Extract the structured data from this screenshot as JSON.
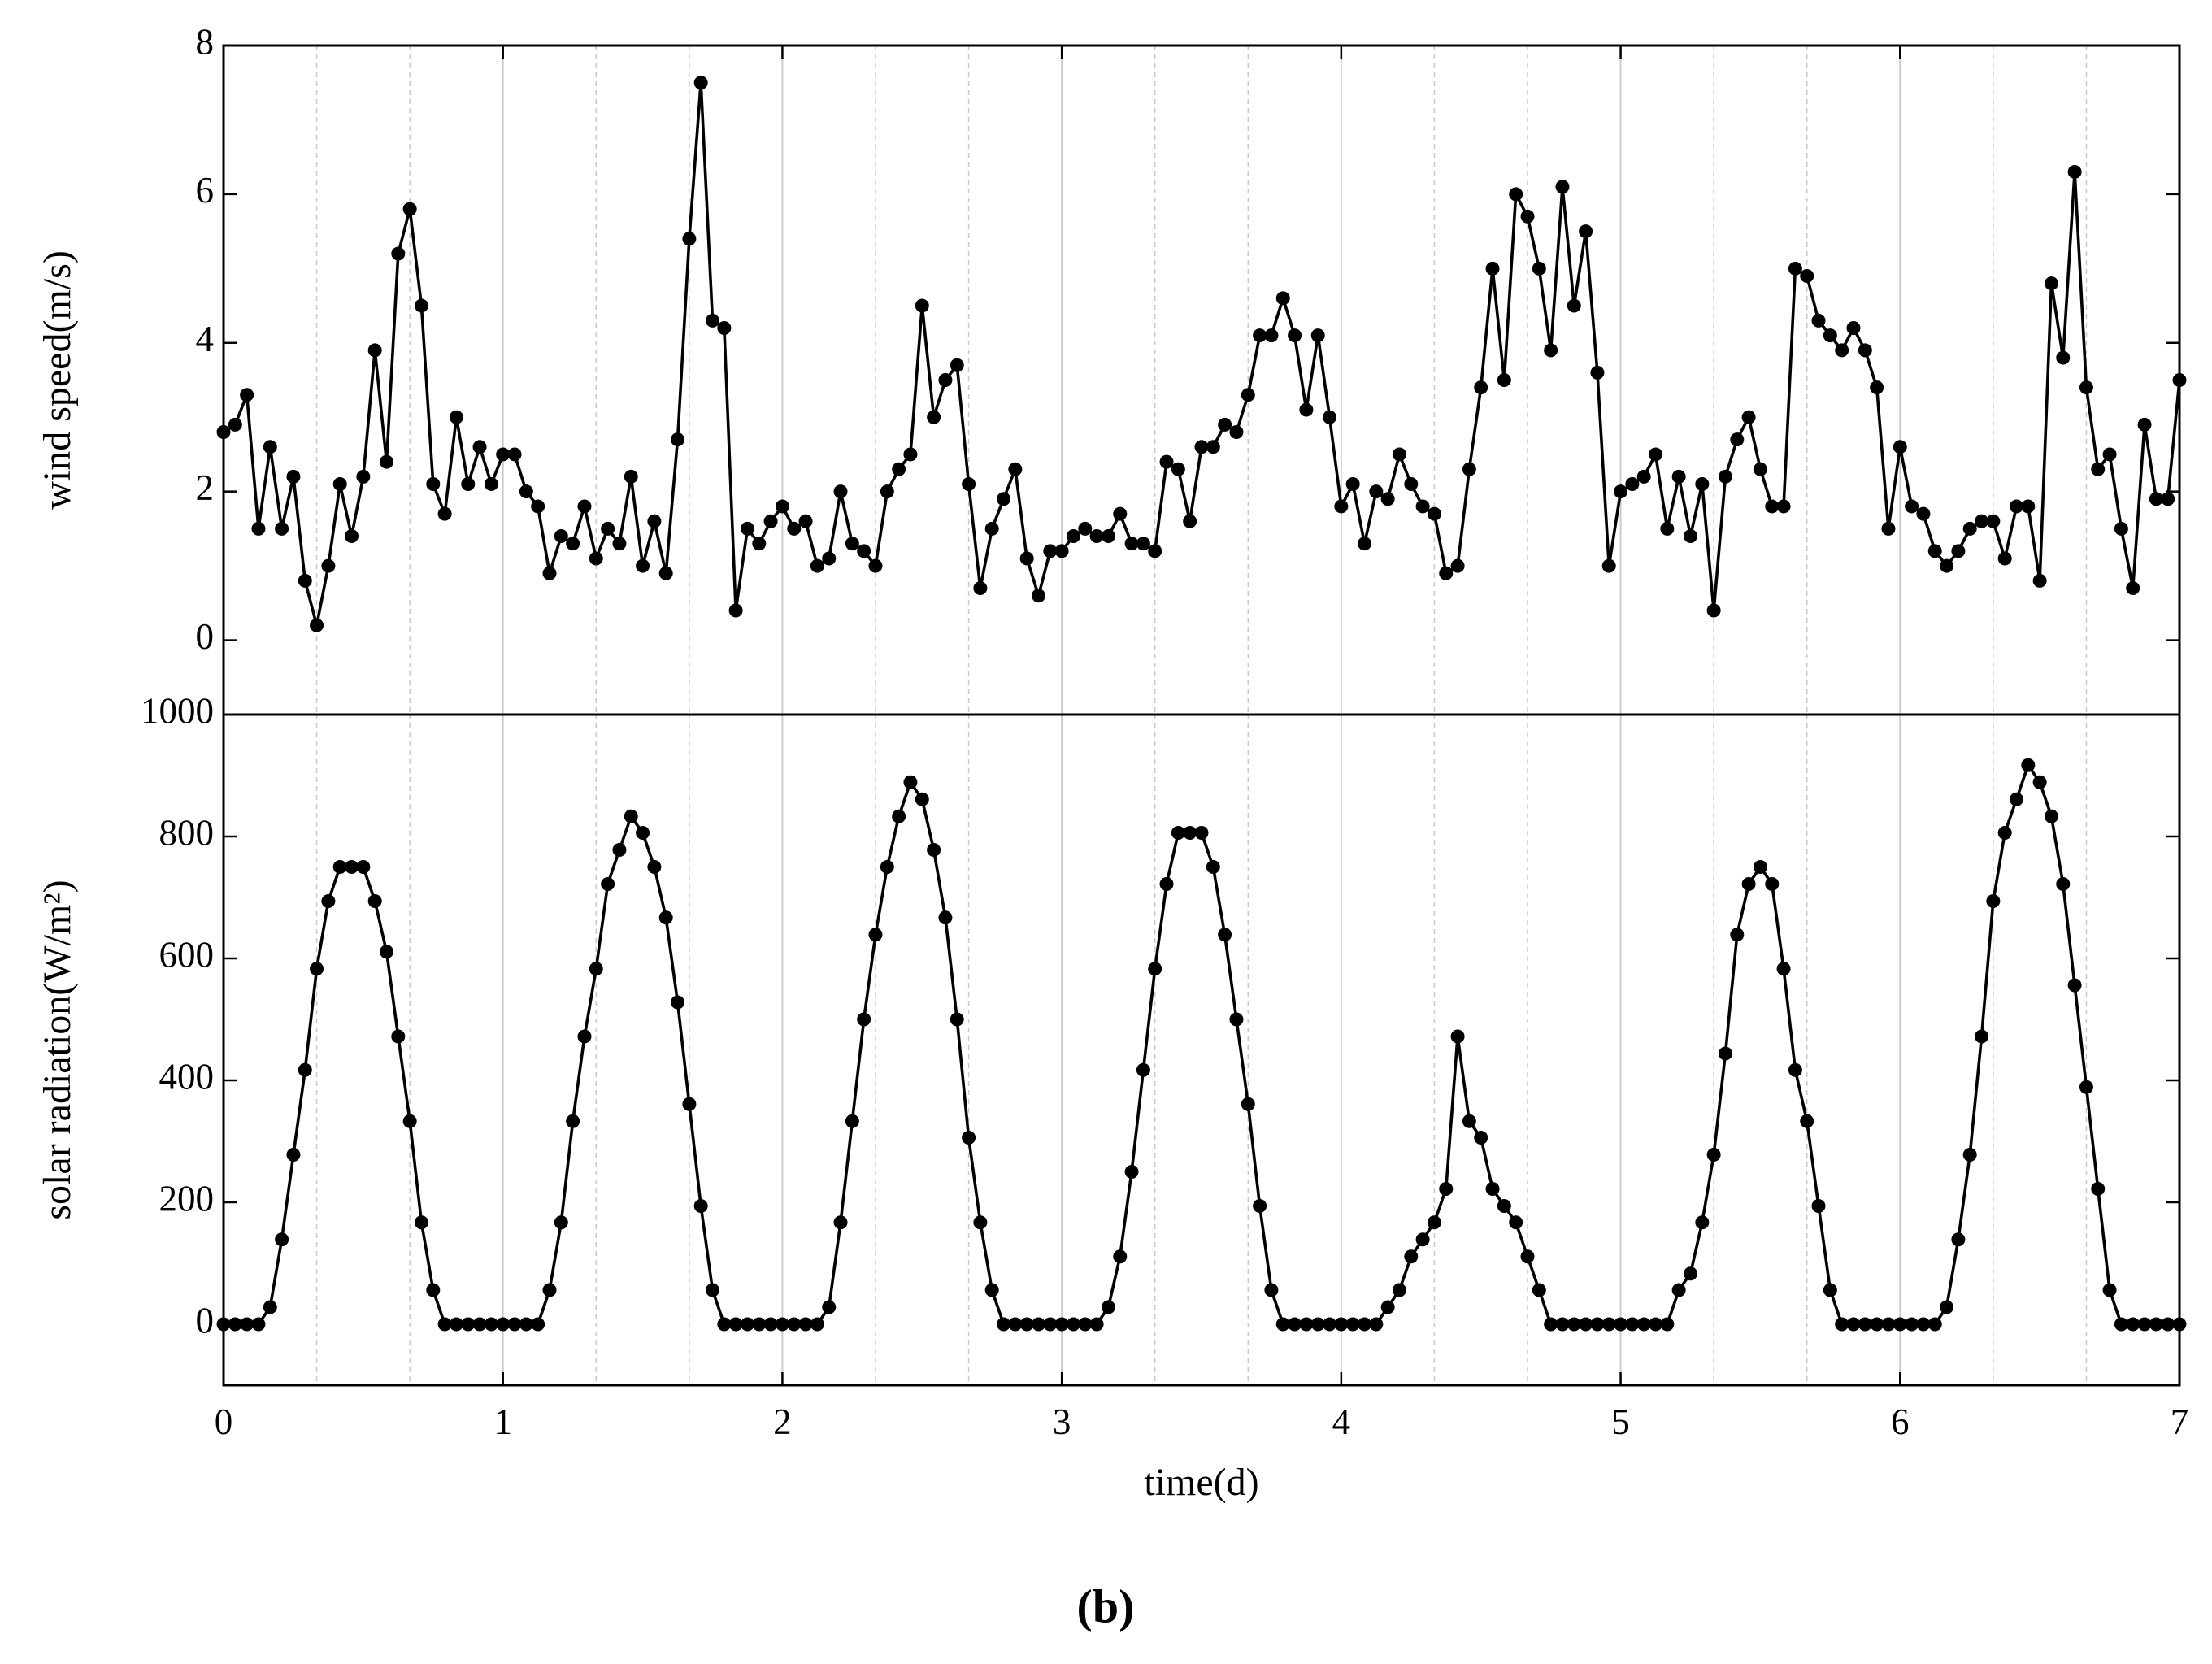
{
  "caption": "(b)",
  "chart_data": [
    {
      "type": "line",
      "ylabel": "wind speed(m/s)",
      "color": "#000000",
      "grid": true,
      "xlim": [
        0,
        7
      ],
      "xticks": [
        0,
        1,
        2,
        3,
        4,
        5,
        6,
        7
      ],
      "xminorticks": [
        0.3333,
        0.6667,
        1.3333,
        1.6667,
        2.3333,
        2.6667,
        3.3333,
        3.6667,
        4.3333,
        4.6667,
        5.3333,
        5.6667,
        6.3333,
        6.6667
      ],
      "ylim": [
        -1,
        8
      ],
      "yticks": [
        0,
        2,
        4,
        6,
        8
      ],
      "x": [
        0,
        0.0417,
        0.0833,
        0.125,
        0.1667,
        0.2083,
        0.25,
        0.2917,
        0.3333,
        0.375,
        0.4167,
        0.4583,
        0.5,
        0.5417,
        0.5833,
        0.625,
        0.6667,
        0.7083,
        0.75,
        0.7917,
        0.8333,
        0.875,
        0.9167,
        0.9583,
        1,
        1.0417,
        1.0833,
        1.125,
        1.1667,
        1.2083,
        1.25,
        1.2917,
        1.3333,
        1.375,
        1.4167,
        1.4583,
        1.5,
        1.5417,
        1.5833,
        1.625,
        1.6667,
        1.7083,
        1.75,
        1.7917,
        1.8333,
        1.875,
        1.9167,
        1.9583,
        2,
        2.0417,
        2.0833,
        2.125,
        2.1667,
        2.2083,
        2.25,
        2.2917,
        2.3333,
        2.375,
        2.4167,
        2.4583,
        2.5,
        2.5417,
        2.5833,
        2.625,
        2.6667,
        2.7083,
        2.75,
        2.7917,
        2.8333,
        2.875,
        2.9167,
        2.9583,
        3,
        3.0417,
        3.0833,
        3.125,
        3.1667,
        3.2083,
        3.25,
        3.2917,
        3.3333,
        3.375,
        3.4167,
        3.4583,
        3.5,
        3.5417,
        3.5833,
        3.625,
        3.6667,
        3.7083,
        3.75,
        3.7917,
        3.8333,
        3.875,
        3.9167,
        3.9583,
        4,
        4.0417,
        4.0833,
        4.125,
        4.1667,
        4.2083,
        4.25,
        4.2917,
        4.3333,
        4.375,
        4.4167,
        4.4583,
        4.5,
        4.5417,
        4.5833,
        4.625,
        4.6667,
        4.7083,
        4.75,
        4.7917,
        4.8333,
        4.875,
        4.9167,
        4.9583,
        5,
        5.0417,
        5.0833,
        5.125,
        5.1667,
        5.2083,
        5.25,
        5.2917,
        5.3333,
        5.375,
        5.4167,
        5.4583,
        5.5,
        5.5417,
        5.5833,
        5.625,
        5.6667,
        5.7083,
        5.75,
        5.7917,
        5.8333,
        5.875,
        5.9167,
        5.9583,
        6,
        6.0417,
        6.0833,
        6.125,
        6.1667,
        6.2083,
        6.25,
        6.2917,
        6.3333,
        6.375,
        6.4167,
        6.4583,
        6.5,
        6.5417,
        6.5833,
        6.625,
        6.6667,
        6.7083,
        6.75,
        6.7917,
        6.8333,
        6.875,
        6.9167,
        6.9583,
        7
      ],
      "values": [
        2.8,
        2.9,
        3.3,
        1.5,
        2.6,
        1.5,
        2.2,
        0.8,
        0.2,
        1.0,
        2.1,
        1.4,
        2.2,
        3.9,
        2.4,
        5.2,
        5.8,
        4.5,
        2.1,
        1.7,
        3.0,
        2.1,
        2.6,
        2.1,
        2.5,
        2.5,
        2.0,
        1.8,
        0.9,
        1.4,
        1.3,
        1.8,
        1.1,
        1.5,
        1.3,
        2.2,
        1.0,
        1.6,
        0.9,
        2.7,
        5.4,
        7.5,
        4.3,
        4.2,
        0.4,
        1.5,
        1.3,
        1.6,
        1.8,
        1.5,
        1.6,
        1.0,
        1.1,
        2.0,
        1.3,
        1.2,
        1.0,
        2.0,
        2.3,
        2.5,
        4.5,
        3.0,
        3.5,
        3.7,
        2.1,
        0.7,
        1.5,
        1.9,
        2.3,
        1.1,
        0.6,
        1.2,
        1.2,
        1.4,
        1.5,
        1.4,
        1.4,
        1.7,
        1.3,
        1.3,
        1.2,
        2.4,
        2.3,
        1.6,
        2.6,
        2.6,
        2.9,
        2.8,
        3.3,
        4.1,
        4.1,
        4.6,
        4.1,
        3.1,
        4.1,
        3.0,
        1.8,
        2.1,
        1.3,
        2.0,
        1.9,
        2.5,
        2.1,
        1.8,
        1.7,
        0.9,
        1.0,
        2.3,
        3.4,
        5.0,
        3.5,
        6.0,
        5.7,
        5.0,
        3.9,
        6.1,
        4.5,
        5.5,
        3.6,
        1.0,
        2.0,
        2.1,
        2.2,
        2.5,
        1.5,
        2.2,
        1.4,
        2.1,
        0.4,
        2.2,
        2.7,
        3.0,
        2.3,
        1.8,
        1.8,
        5.0,
        4.9,
        4.3,
        4.1,
        3.9,
        4.2,
        3.9,
        3.4,
        1.5,
        2.6,
        1.8,
        1.7,
        1.2,
        1.0,
        1.2,
        1.5,
        1.6,
        1.6,
        1.1,
        1.8,
        1.8,
        0.8,
        4.8,
        3.8,
        6.3,
        3.4,
        2.3,
        2.5,
        1.5,
        0.7,
        2.9,
        1.9,
        1.9,
        3.5
      ]
    },
    {
      "type": "line",
      "ylabel": "solar radiation(W/m²)",
      "xlabel": "time(d)",
      "color": "#000000",
      "grid": true,
      "xlim": [
        0,
        7
      ],
      "xticks": [
        0,
        1,
        2,
        3,
        4,
        5,
        6,
        7
      ],
      "xminorticks": [
        0.3333,
        0.6667,
        1.3333,
        1.6667,
        2.3333,
        2.6667,
        3.3333,
        3.6667,
        4.3333,
        4.6667,
        5.3333,
        5.6667,
        6.3333,
        6.6667
      ],
      "ylim": [
        -100,
        1000
      ],
      "yticks": [
        0,
        200,
        400,
        600,
        800,
        1000
      ],
      "x": [
        0,
        0.0417,
        0.0833,
        0.125,
        0.1667,
        0.2083,
        0.25,
        0.2917,
        0.3333,
        0.375,
        0.4167,
        0.4583,
        0.5,
        0.5417,
        0.5833,
        0.625,
        0.6667,
        0.7083,
        0.75,
        0.7917,
        0.8333,
        0.875,
        0.9167,
        0.9583,
        1,
        1.0417,
        1.0833,
        1.125,
        1.1667,
        1.2083,
        1.25,
        1.2917,
        1.3333,
        1.375,
        1.4167,
        1.4583,
        1.5,
        1.5417,
        1.5833,
        1.625,
        1.6667,
        1.7083,
        1.75,
        1.7917,
        1.8333,
        1.875,
        1.9167,
        1.9583,
        2,
        2.0417,
        2.0833,
        2.125,
        2.1667,
        2.2083,
        2.25,
        2.2917,
        2.3333,
        2.375,
        2.4167,
        2.4583,
        2.5,
        2.5417,
        2.5833,
        2.625,
        2.6667,
        2.7083,
        2.75,
        2.7917,
        2.8333,
        2.875,
        2.9167,
        2.9583,
        3,
        3.0417,
        3.0833,
        3.125,
        3.1667,
        3.2083,
        3.25,
        3.2917,
        3.3333,
        3.375,
        3.4167,
        3.4583,
        3.5,
        3.5417,
        3.5833,
        3.625,
        3.6667,
        3.7083,
        3.75,
        3.7917,
        3.8333,
        3.875,
        3.9167,
        3.9583,
        4,
        4.0417,
        4.0833,
        4.125,
        4.1667,
        4.2083,
        4.25,
        4.2917,
        4.3333,
        4.375,
        4.4167,
        4.4583,
        4.5,
        4.5417,
        4.5833,
        4.625,
        4.6667,
        4.7083,
        4.75,
        4.7917,
        4.8333,
        4.875,
        4.9167,
        4.9583,
        5,
        5.0417,
        5.0833,
        5.125,
        5.1667,
        5.2083,
        5.25,
        5.2917,
        5.3333,
        5.375,
        5.4167,
        5.4583,
        5.5,
        5.5417,
        5.5833,
        5.625,
        5.6667,
        5.7083,
        5.75,
        5.7917,
        5.8333,
        5.875,
        5.9167,
        5.9583,
        6,
        6.0417,
        6.0833,
        6.125,
        6.1667,
        6.2083,
        6.25,
        6.2917,
        6.3333,
        6.375,
        6.4167,
        6.4583,
        6.5,
        6.5417,
        6.5833,
        6.625,
        6.6667,
        6.7083,
        6.75,
        6.7917,
        6.8333,
        6.875,
        6.9167,
        6.9583,
        7
      ],
      "values": [
        0,
        0,
        0,
        0,
        28,
        139,
        278,
        417,
        583,
        694,
        750,
        750,
        750,
        694,
        611,
        472,
        333,
        167,
        56,
        0,
        0,
        0,
        0,
        0,
        0,
        0,
        0,
        0,
        56,
        167,
        333,
        472,
        583,
        722,
        778,
        833,
        806,
        750,
        667,
        528,
        361,
        194,
        56,
        0,
        0,
        0,
        0,
        0,
        0,
        0,
        0,
        0,
        28,
        167,
        333,
        500,
        639,
        750,
        833,
        889,
        861,
        778,
        667,
        500,
        306,
        167,
        56,
        0,
        0,
        0,
        0,
        0,
        0,
        0,
        0,
        0,
        28,
        111,
        250,
        417,
        583,
        722,
        806,
        806,
        806,
        750,
        639,
        500,
        361,
        194,
        56,
        0,
        0,
        0,
        0,
        0,
        0,
        0,
        0,
        0,
        28,
        56,
        111,
        139,
        167,
        222,
        472,
        333,
        306,
        222,
        194,
        167,
        111,
        56,
        0,
        0,
        0,
        0,
        0,
        0,
        0,
        0,
        0,
        0,
        0,
        56,
        83,
        167,
        278,
        444,
        639,
        722,
        750,
        722,
        583,
        417,
        333,
        194,
        56,
        0,
        0,
        0,
        0,
        0,
        0,
        0,
        0,
        0,
        28,
        139,
        278,
        472,
        694,
        806,
        861,
        917,
        889,
        833,
        722,
        556,
        389,
        222,
        56,
        0,
        0,
        0,
        0,
        0,
        0
      ]
    }
  ]
}
